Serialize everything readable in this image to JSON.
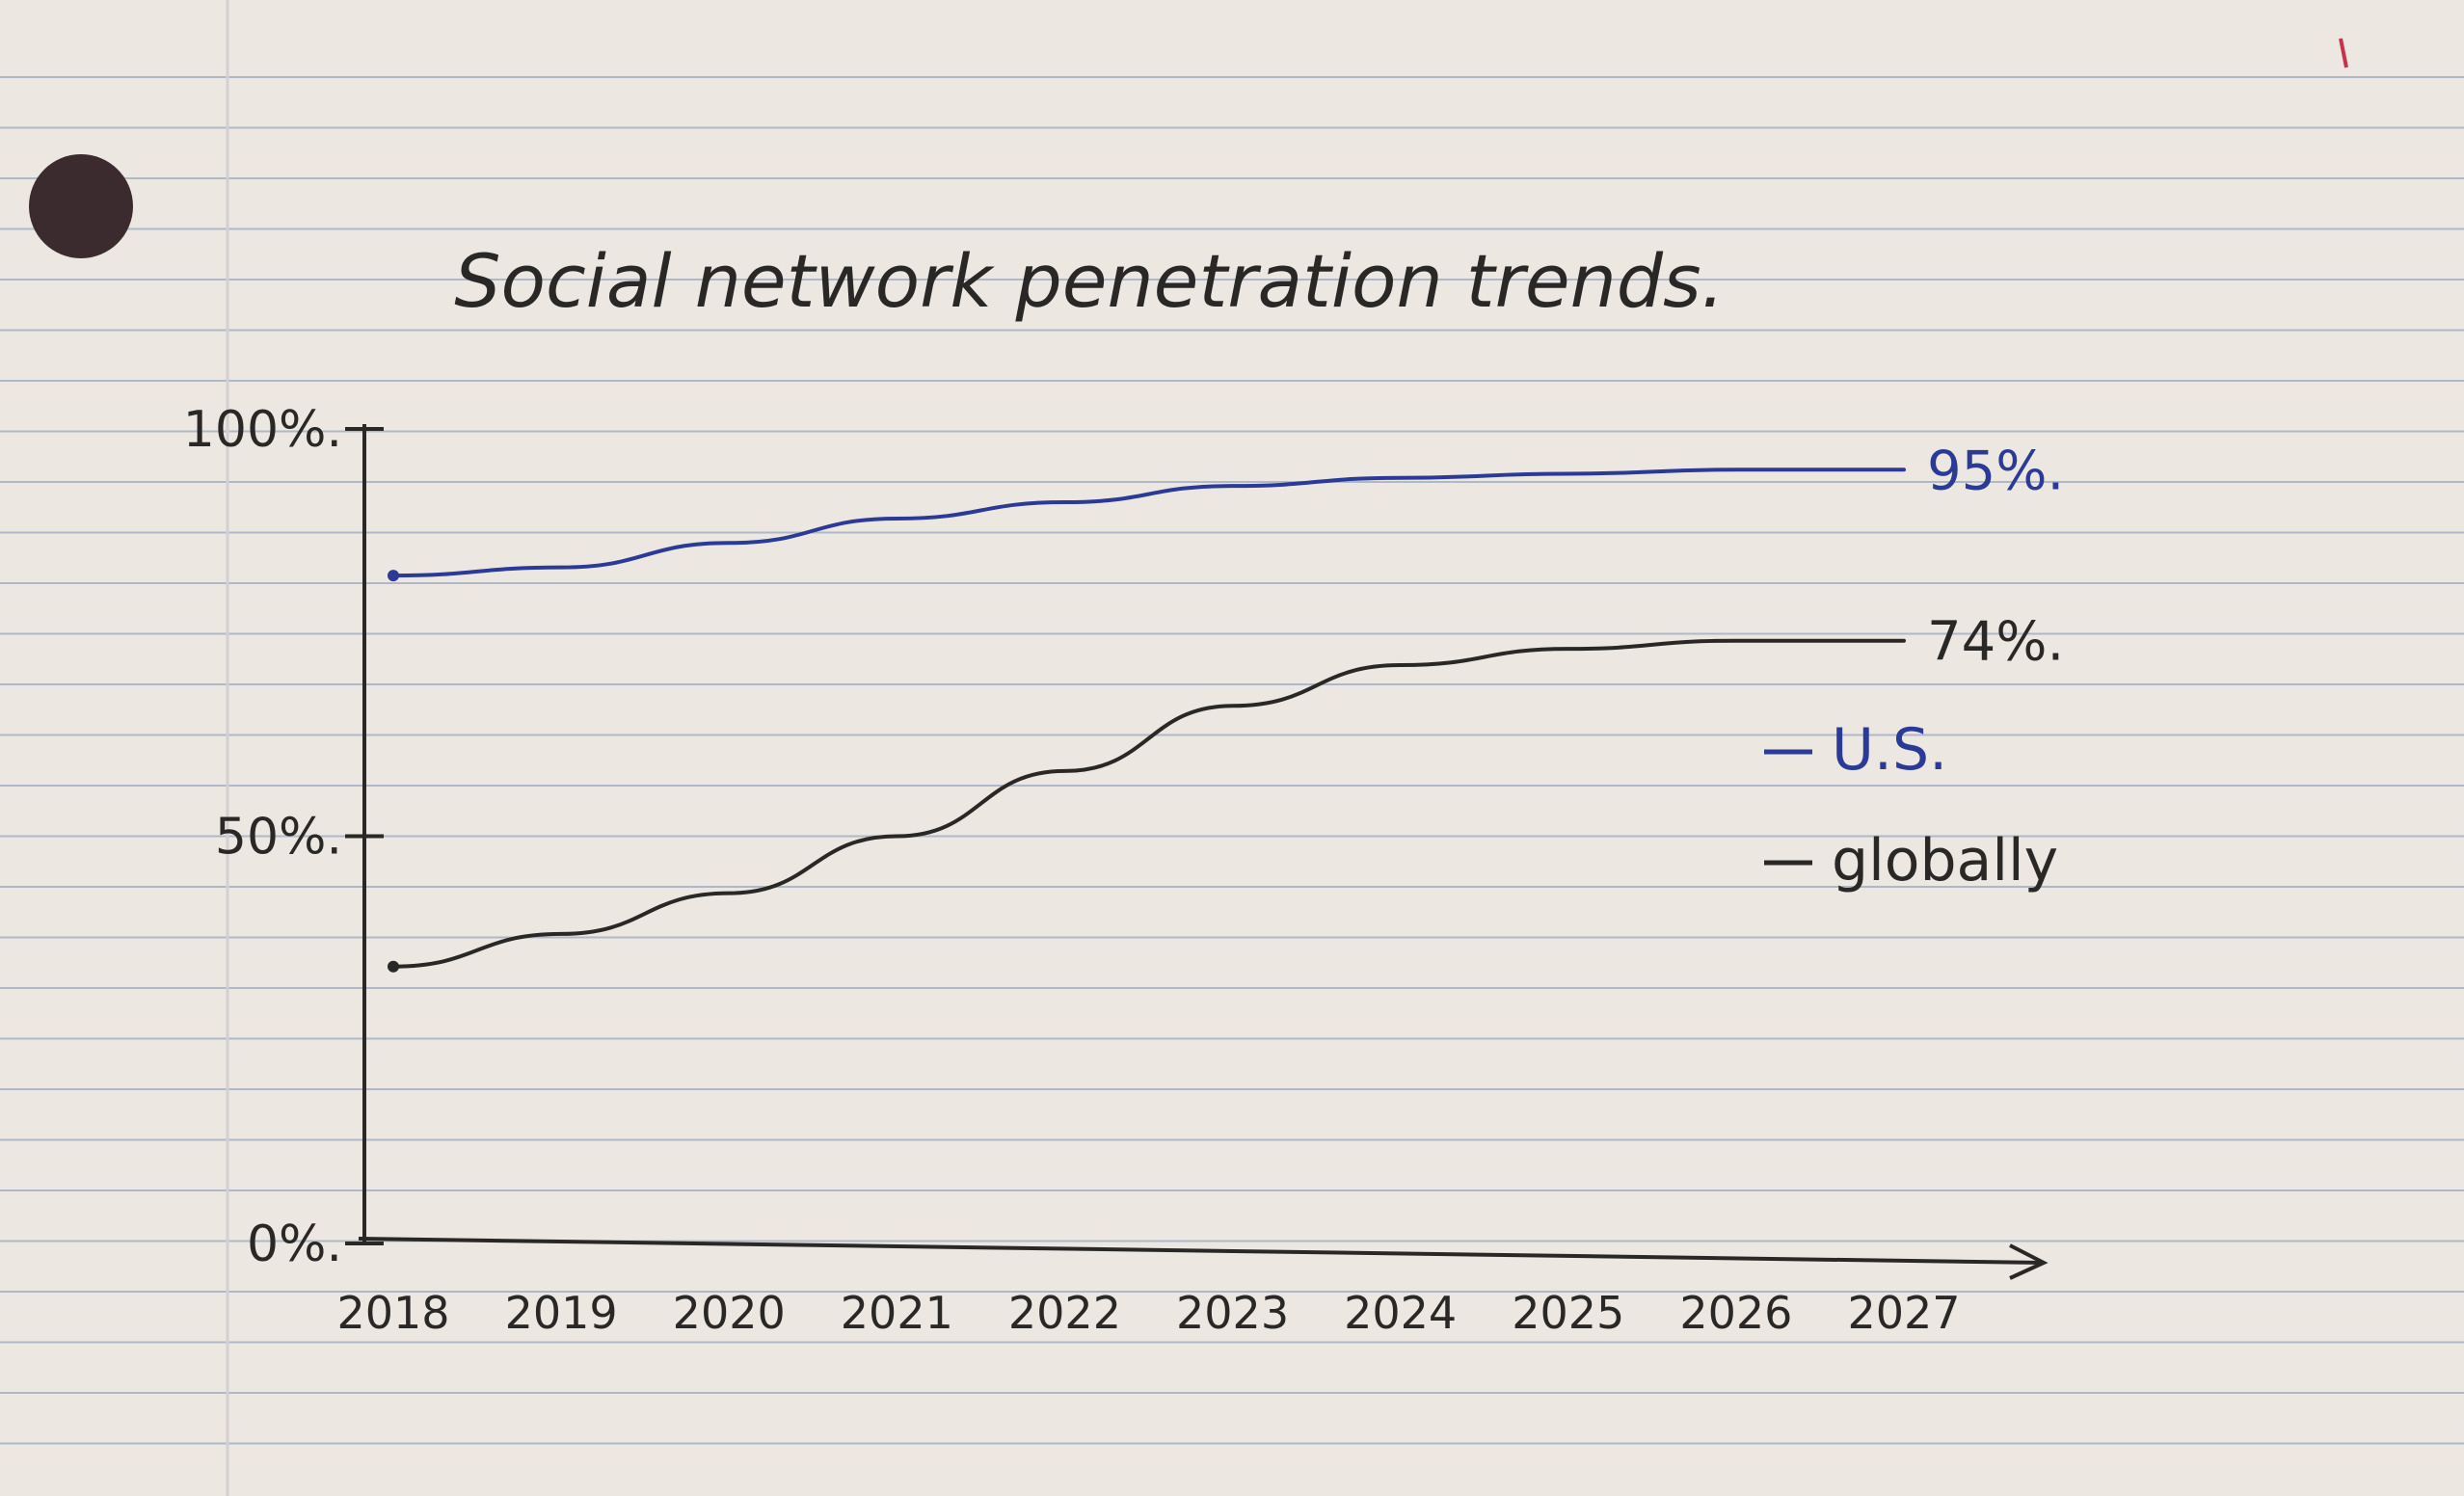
{
  "colors": {
    "paper": "#ece8e1",
    "rule": "#aeb8c8",
    "margin": "#d3cfd3",
    "ink_black": "#2a2826",
    "ink_blue": "#2b3a96",
    "hole": "#3b2a2e"
  },
  "chart_data": {
    "type": "line",
    "title": "Social network penetration trends.",
    "xlabel": "",
    "ylabel": "",
    "x": [
      "2018",
      "2019",
      "2020",
      "2021",
      "2022",
      "2023",
      "2024",
      "2025",
      "2026",
      "2027"
    ],
    "ylim": [
      0,
      100
    ],
    "y_ticks": [
      {
        "value": 0,
        "label": "0%."
      },
      {
        "value": 50,
        "label": "50%."
      },
      {
        "value": 100,
        "label": "100%."
      }
    ],
    "series": [
      {
        "name": "U.S.",
        "color": "#2b3a96",
        "values": [
          82,
          83,
          86,
          89,
          91,
          93,
          94,
          94.5,
          95,
          95
        ],
        "end_label": "95%."
      },
      {
        "name": "globally",
        "color": "#2a2826",
        "values": [
          34,
          38,
          43,
          50,
          58,
          66,
          71,
          73,
          74,
          74
        ],
        "end_label": "74%."
      }
    ],
    "legend_position": "right",
    "grid": false
  }
}
